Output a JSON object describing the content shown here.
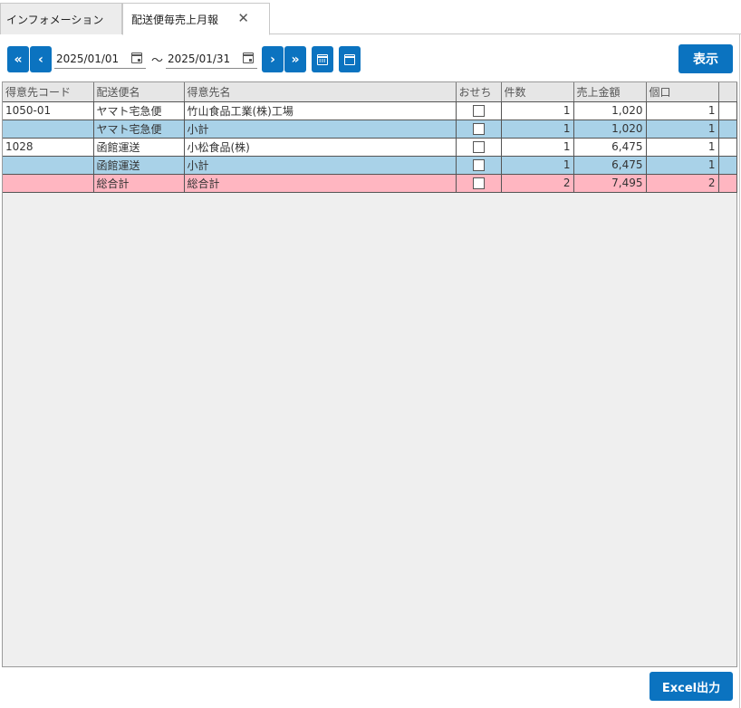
{
  "tabs": [
    {
      "label": "インフォメーション"
    },
    {
      "label": "配送便毎売上月報",
      "close": "✕"
    }
  ],
  "toolbar": {
    "first_label": "«",
    "prev_label": "‹",
    "date_from": "2025/01/01",
    "tilde": "〜",
    "date_to": "2025/01/31",
    "next_label": "›",
    "last_label": "»",
    "show_label": "表示",
    "excel_label": "Excel出力"
  },
  "grid": {
    "headers": [
      "得意先コード",
      "配送便名",
      "得意先名",
      "おせち",
      "件数",
      "売上金額",
      "個口",
      ""
    ],
    "rows": [
      {
        "code": "1050-01",
        "delivery": "ヤマト宅急便",
        "customer": "竹山食品工業(株)工場",
        "osechi": false,
        "count": "1",
        "amount": "1,020",
        "packages": "1"
      },
      {
        "code": "",
        "delivery": "ヤマト宅急便",
        "customer": "小計",
        "osechi": false,
        "count": "1",
        "amount": "1,020",
        "packages": "1"
      },
      {
        "code": "1028",
        "delivery": "函館運送",
        "customer": "小松食品(株)",
        "osechi": false,
        "count": "1",
        "amount": "6,475",
        "packages": "1"
      },
      {
        "code": "",
        "delivery": "函館運送",
        "customer": "小計",
        "osechi": false,
        "count": "1",
        "amount": "6,475",
        "packages": "1"
      },
      {
        "code": "",
        "delivery": "総合計",
        "customer": "総合計",
        "osechi": false,
        "count": "2",
        "amount": "7,495",
        "packages": "2"
      }
    ]
  },
  "colors": {
    "accent": "#0b73c0",
    "subtotal_row": "#a9d2e8",
    "total_row": "#ffb6c1"
  }
}
